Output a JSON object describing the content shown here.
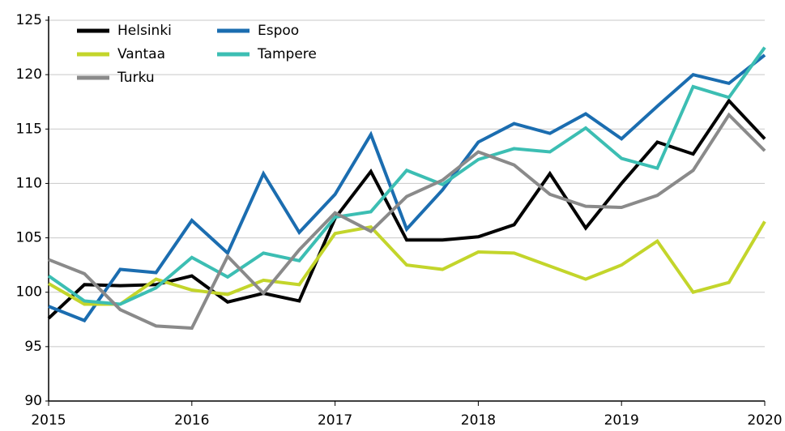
{
  "chart_data": {
    "type": "line",
    "x": [
      2015,
      2015.25,
      2015.5,
      2015.75,
      2016,
      2016.25,
      2016.5,
      2016.75,
      2017,
      2017.25,
      2017.5,
      2017.75,
      2018,
      2018.25,
      2018.5,
      2018.75,
      2019,
      2019.25,
      2019.5,
      2019.75,
      2020
    ],
    "series": [
      {
        "name": "Helsinki",
        "color": "#000000",
        "values": [
          97.6,
          100.7,
          100.6,
          100.7,
          101.5,
          99.1,
          99.9,
          99.2,
          106.8,
          111.1,
          104.8,
          104.8,
          105.1,
          106.2,
          110.9,
          105.9,
          110.0,
          113.8,
          112.7,
          117.6,
          114.1
        ]
      },
      {
        "name": "Espoo",
        "color": "#1b6db0",
        "values": [
          98.7,
          97.4,
          102.1,
          101.8,
          106.6,
          103.6,
          110.9,
          105.5,
          109.0,
          114.5,
          105.8,
          109.4,
          113.8,
          115.5,
          114.6,
          116.4,
          114.1,
          117.1,
          120.0,
          119.2,
          121.8
        ]
      },
      {
        "name": "Vantaa",
        "color": "#c3d52b",
        "values": [
          100.8,
          98.9,
          98.9,
          101.2,
          100.2,
          99.8,
          101.1,
          100.7,
          105.4,
          106.0,
          102.5,
          102.1,
          103.7,
          103.6,
          102.4,
          101.2,
          102.5,
          104.7,
          100.0,
          100.9,
          106.5
        ]
      },
      {
        "name": "Tampere",
        "color": "#3cbeb3",
        "values": [
          101.5,
          99.2,
          98.9,
          100.4,
          103.2,
          101.4,
          103.6,
          102.9,
          106.9,
          107.4,
          111.2,
          109.9,
          112.2,
          113.2,
          112.9,
          115.1,
          112.3,
          111.4,
          118.9,
          117.9,
          122.5
        ]
      },
      {
        "name": "Turku",
        "color": "#8a8a8a",
        "values": [
          103.0,
          101.7,
          98.4,
          96.9,
          96.7,
          103.3,
          99.9,
          103.9,
          107.3,
          105.6,
          108.8,
          110.3,
          112.9,
          111.7,
          109.0,
          107.9,
          107.8,
          108.9,
          111.2,
          116.3,
          113.0
        ]
      }
    ],
    "xlim": [
      2015,
      2020
    ],
    "xticks": [
      2015,
      2016,
      2017,
      2018,
      2019,
      2020
    ],
    "ylim": [
      90,
      125
    ],
    "yticks": [
      90,
      95,
      100,
      105,
      110,
      115,
      120,
      125
    ],
    "grid": true,
    "legend": "top-left"
  }
}
